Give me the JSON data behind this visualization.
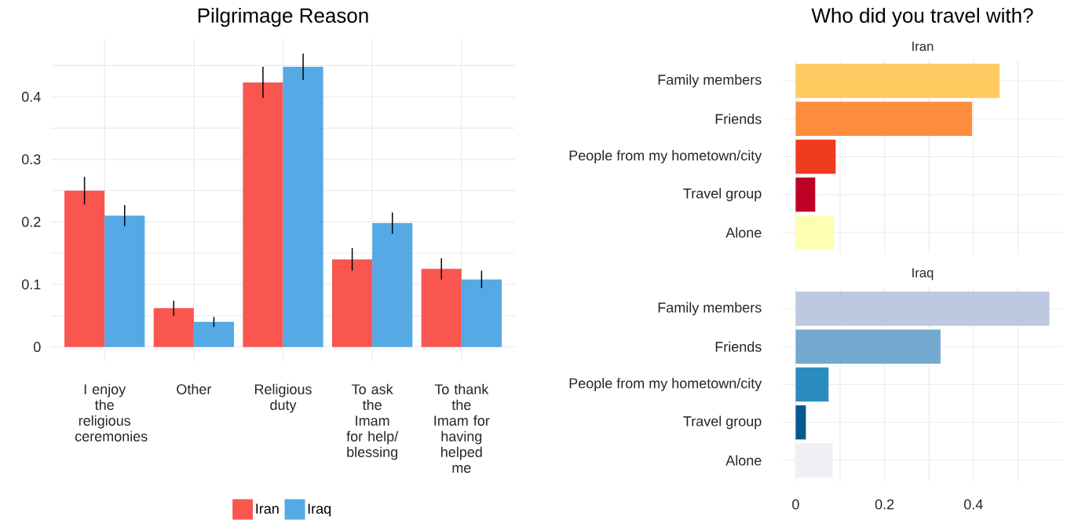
{
  "chart_data": [
    {
      "type": "bar",
      "title": "Pilgrimage Reason",
      "categories": [
        "I enjoy the religious ceremonies",
        "Other",
        "Religious duty",
        "To ask the Imam for help/ blessing",
        "To thank the Imam for having helped me"
      ],
      "series": [
        {
          "name": "Iran",
          "color": "#f8564f",
          "values": [
            0.25,
            0.062,
            0.423,
            0.14,
            0.125
          ],
          "errors": [
            0.022,
            0.012,
            0.025,
            0.018,
            0.017
          ]
        },
        {
          "name": "Iraq",
          "color": "#55a9e4",
          "values": [
            0.21,
            0.04,
            0.448,
            0.198,
            0.108
          ],
          "errors": [
            0.017,
            0.008,
            0.021,
            0.017,
            0.014
          ]
        }
      ],
      "ylim": [
        -0.023,
        0.492
      ],
      "yticks": [
        0,
        {
          "value": 0.05,
          "label": null
        },
        0.1,
        {
          "value": 0.15,
          "label": null
        },
        0.2,
        {
          "value": 0.25,
          "label": null
        },
        0.3,
        {
          "value": 0.35,
          "label": null
        },
        0.4,
        {
          "value": 0.45,
          "label": null
        }
      ],
      "grid": true,
      "legend": "bottom"
    },
    {
      "type": "bar",
      "orientation": "horizontal",
      "title": "Who did you travel with?",
      "subtitle": "Iran",
      "categories": [
        "Family members",
        "Friends",
        "People from my hometown/city",
        "Travel group",
        "Alone"
      ],
      "values": [
        0.459,
        0.397,
        0.09,
        0.044,
        0.086
      ],
      "colors": [
        "#fdcb5f",
        "#fd8d3c",
        "#f03b20",
        "#bd0026",
        "#ffffb2"
      ],
      "xlim": [
        -0.029,
        0.6
      ],
      "xticks": [
        0,
        {
          "value": 0.1,
          "label": null
        },
        0.2,
        {
          "value": 0.3,
          "label": null
        },
        0.4,
        {
          "value": 0.5,
          "label": null
        }
      ],
      "grid": true,
      "tick_labels": "y"
    },
    {
      "type": "bar",
      "orientation": "horizontal",
      "subtitle": "Iraq",
      "categories": [
        "Family members",
        "Friends",
        "People from my hometown/city",
        "Travel group",
        "Alone"
      ],
      "values": [
        0.571,
        0.326,
        0.074,
        0.023,
        0.083
      ],
      "colors": [
        "#bdc9e1",
        "#74a9cf",
        "#2b8cbe",
        "#045a8d",
        "#f1eef6"
      ],
      "xlim": [
        -0.029,
        0.6
      ],
      "xticks": [
        0,
        {
          "value": 0.1,
          "label": null
        },
        0.2,
        {
          "value": 0.3,
          "label": null
        },
        0.4,
        {
          "value": 0.5,
          "label": null
        }
      ],
      "grid": true
    }
  ]
}
